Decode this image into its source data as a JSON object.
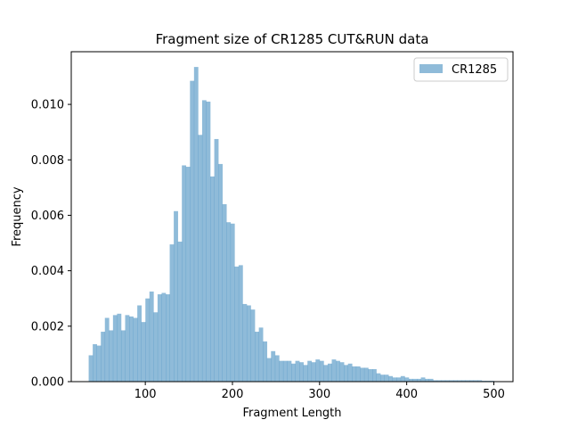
{
  "chart_data": {
    "type": "bar",
    "title": "Fragment size of CR1285 CUT&RUN data",
    "xlabel": "Fragment Length",
    "ylabel": "Frequency",
    "xlim": [
      15,
      522
    ],
    "ylim": [
      0,
      0.0119
    ],
    "x_ticks": [
      100,
      200,
      300,
      400,
      500
    ],
    "x_tick_labels": [
      "100",
      "200",
      "300",
      "400",
      "500"
    ],
    "y_ticks": [
      0,
      0.002,
      0.004,
      0.006,
      0.008,
      0.01
    ],
    "y_tick_labels": [
      "0.000",
      "0.002",
      "0.004",
      "0.006",
      "0.008",
      "0.010"
    ],
    "bin_start": 35,
    "bin_width": 4.65,
    "legend_position": "top-right",
    "series": [
      {
        "name": "CR1285",
        "color": "#1f77b4",
        "opacity": 0.5,
        "values": [
          0.00095,
          0.00135,
          0.0013,
          0.0018,
          0.0023,
          0.00185,
          0.0024,
          0.00245,
          0.00185,
          0.0024,
          0.00235,
          0.0023,
          0.00275,
          0.00215,
          0.003,
          0.00325,
          0.0025,
          0.00315,
          0.0032,
          0.00315,
          0.00495,
          0.00615,
          0.00505,
          0.0078,
          0.00775,
          0.01085,
          0.01135,
          0.0089,
          0.01015,
          0.0101,
          0.0074,
          0.00875,
          0.00785,
          0.0064,
          0.00575,
          0.0057,
          0.00415,
          0.0042,
          0.0028,
          0.00275,
          0.0026,
          0.0018,
          0.00195,
          0.00145,
          0.00085,
          0.0011,
          0.00095,
          0.00075,
          0.00075,
          0.00075,
          0.00065,
          0.00075,
          0.0007,
          0.0006,
          0.00075,
          0.0007,
          0.0008,
          0.00075,
          0.0006,
          0.00065,
          0.0008,
          0.00075,
          0.0007,
          0.0006,
          0.00065,
          0.00055,
          0.00055,
          0.0005,
          0.0005,
          0.00045,
          0.00045,
          0.0003,
          0.00025,
          0.00025,
          0.0002,
          0.00015,
          0.00015,
          0.0002,
          0.00015,
          0.0001,
          0.0001,
          0.0001,
          0.00015,
          0.0001,
          0.0001,
          5e-05,
          5e-05,
          5e-05,
          5e-05,
          5e-05,
          5e-05,
          5e-05,
          5e-05,
          5e-05,
          5e-05,
          5e-05,
          5e-05,
          3e-05,
          3e-05,
          3e-05
        ]
      }
    ]
  }
}
